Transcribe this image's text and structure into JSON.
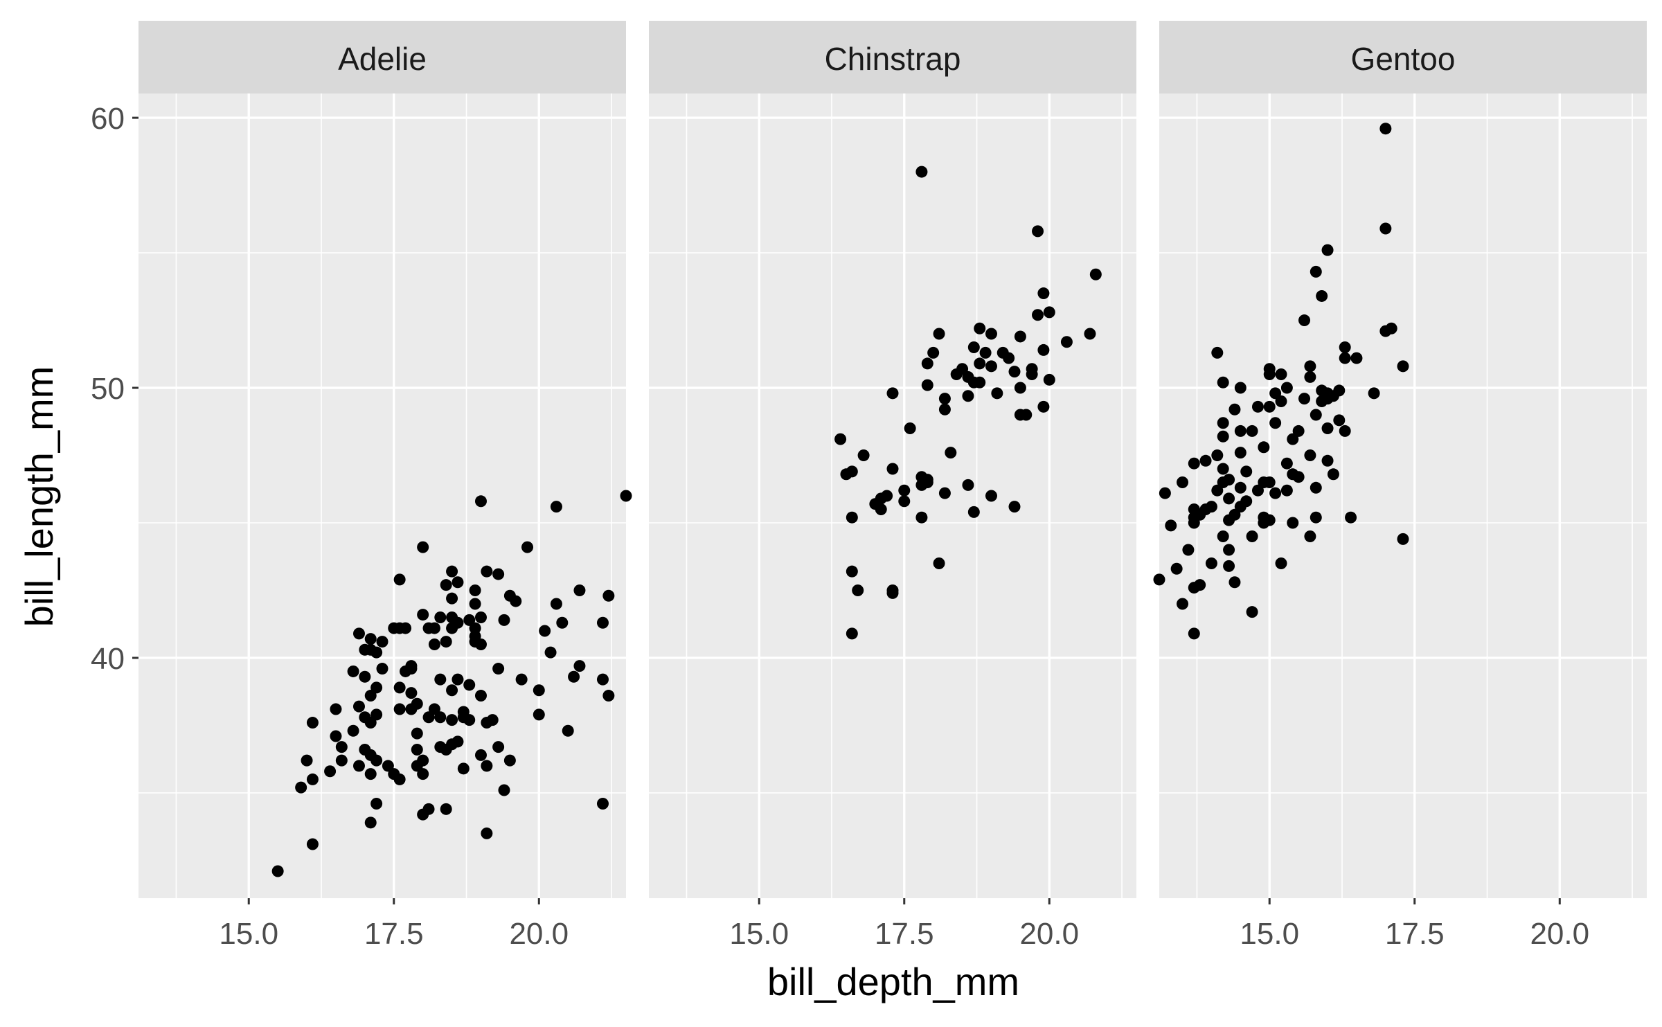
{
  "chart_data": {
    "type": "scatter",
    "xlabel": "bill_depth_mm",
    "ylabel": "bill_length_mm",
    "xlim": [
      13.1,
      21.5
    ],
    "ylim": [
      31.1,
      60.9
    ],
    "x_ticks": [
      15.0,
      17.5,
      20.0
    ],
    "x_tick_labels": [
      "15.0",
      "17.5",
      "20.0"
    ],
    "y_ticks": [
      40,
      50,
      60
    ],
    "y_tick_labels": [
      "40",
      "50",
      "60"
    ],
    "grid": true,
    "point_color": "#000000",
    "panel_background": "#ebebeb",
    "strip_background": "#d9d9d9",
    "facets": [
      {
        "label": "Adelie",
        "points": [
          [
            15.5,
            32.1
          ],
          [
            16.1,
            33.1
          ],
          [
            15.9,
            35.2
          ],
          [
            16.1,
            35.5
          ],
          [
            16.4,
            35.8
          ],
          [
            16.6,
            36.2
          ],
          [
            16.6,
            36.7
          ],
          [
            16.5,
            37.1
          ],
          [
            16.1,
            37.6
          ],
          [
            16.0,
            36.2
          ],
          [
            16.5,
            38.1
          ],
          [
            16.8,
            37.3
          ],
          [
            16.8,
            39.5
          ],
          [
            16.9,
            38.2
          ],
          [
            16.9,
            36.0
          ],
          [
            17.0,
            36.6
          ],
          [
            17.0,
            37.8
          ],
          [
            17.0,
            39.3
          ],
          [
            17.0,
            40.3
          ],
          [
            16.9,
            40.9
          ],
          [
            17.1,
            40.7
          ],
          [
            17.1,
            40.3
          ],
          [
            17.1,
            38.6
          ],
          [
            17.1,
            37.6
          ],
          [
            17.1,
            36.4
          ],
          [
            17.1,
            35.7
          ],
          [
            17.2,
            34.6
          ],
          [
            17.1,
            33.9
          ],
          [
            17.2,
            36.2
          ],
          [
            17.2,
            37.9
          ],
          [
            17.2,
            38.9
          ],
          [
            17.2,
            40.2
          ],
          [
            17.3,
            40.6
          ],
          [
            17.3,
            39.6
          ],
          [
            17.4,
            36.0
          ],
          [
            17.6,
            35.5
          ],
          [
            17.5,
            35.7
          ],
          [
            17.6,
            38.1
          ],
          [
            17.6,
            38.9
          ],
          [
            17.5,
            41.1
          ],
          [
            17.6,
            41.1
          ],
          [
            17.6,
            42.9
          ],
          [
            17.7,
            41.1
          ],
          [
            17.7,
            39.5
          ],
          [
            17.8,
            38.7
          ],
          [
            17.8,
            39.7
          ],
          [
            17.8,
            39.6
          ],
          [
            17.9,
            38.3
          ],
          [
            17.9,
            36.6
          ],
          [
            17.9,
            36.0
          ],
          [
            17.9,
            37.2
          ],
          [
            18.0,
            35.7
          ],
          [
            18.0,
            34.2
          ],
          [
            18.1,
            34.4
          ],
          [
            18.0,
            36.2
          ],
          [
            18.1,
            37.8
          ],
          [
            18.0,
            41.6
          ],
          [
            18.0,
            44.1
          ],
          [
            18.1,
            41.1
          ],
          [
            18.2,
            41.1
          ],
          [
            18.2,
            40.5
          ],
          [
            18.2,
            38.1
          ],
          [
            18.3,
            39.2
          ],
          [
            18.3,
            37.8
          ],
          [
            18.3,
            36.7
          ],
          [
            18.4,
            34.4
          ],
          [
            18.4,
            36.6
          ],
          [
            18.5,
            36.8
          ],
          [
            18.5,
            37.7
          ],
          [
            18.5,
            38.8
          ],
          [
            18.4,
            40.6
          ],
          [
            18.5,
            41.1
          ],
          [
            18.5,
            41.5
          ],
          [
            18.4,
            42.7
          ],
          [
            18.5,
            42.2
          ],
          [
            18.5,
            43.2
          ],
          [
            18.6,
            42.8
          ],
          [
            18.6,
            41.3
          ],
          [
            18.6,
            39.2
          ],
          [
            18.7,
            38.0
          ],
          [
            18.7,
            37.8
          ],
          [
            18.6,
            36.9
          ],
          [
            18.7,
            35.9
          ],
          [
            18.8,
            37.7
          ],
          [
            18.8,
            39.0
          ],
          [
            18.9,
            40.6
          ],
          [
            18.9,
            41.1
          ],
          [
            18.8,
            41.4
          ],
          [
            18.9,
            42.0
          ],
          [
            18.9,
            40.8
          ],
          [
            19.0,
            40.5
          ],
          [
            19.0,
            41.5
          ],
          [
            19.0,
            38.6
          ],
          [
            19.1,
            37.6
          ],
          [
            19.0,
            36.4
          ],
          [
            19.1,
            36.0
          ],
          [
            19.1,
            33.5
          ],
          [
            19.2,
            37.7
          ],
          [
            19.3,
            36.7
          ],
          [
            19.4,
            35.1
          ],
          [
            19.3,
            39.6
          ],
          [
            19.4,
            41.4
          ],
          [
            19.5,
            42.3
          ],
          [
            19.6,
            42.1
          ],
          [
            19.5,
            36.2
          ],
          [
            19.7,
            39.2
          ],
          [
            19.8,
            44.1
          ],
          [
            20.0,
            38.8
          ],
          [
            20.0,
            37.9
          ],
          [
            20.1,
            41.0
          ],
          [
            20.2,
            40.2
          ],
          [
            20.3,
            42.0
          ],
          [
            20.4,
            41.3
          ],
          [
            20.5,
            37.3
          ],
          [
            20.6,
            39.3
          ],
          [
            20.7,
            39.7
          ],
          [
            20.7,
            42.5
          ],
          [
            20.3,
            45.6
          ],
          [
            19.0,
            45.8
          ],
          [
            21.1,
            34.6
          ],
          [
            21.1,
            39.2
          ],
          [
            21.1,
            41.3
          ],
          [
            21.2,
            42.3
          ],
          [
            21.2,
            38.6
          ],
          [
            21.5,
            46.0
          ],
          [
            19.3,
            43.1
          ],
          [
            19.1,
            43.2
          ],
          [
            18.9,
            42.5
          ],
          [
            17.8,
            38.1
          ],
          [
            18.3,
            41.5
          ]
        ]
      },
      {
        "label": "Chinstrap",
        "points": [
          [
            16.4,
            48.1
          ],
          [
            16.5,
            46.8
          ],
          [
            16.6,
            46.9
          ],
          [
            16.6,
            45.2
          ],
          [
            16.6,
            43.2
          ],
          [
            16.7,
            42.5
          ],
          [
            16.6,
            40.9
          ],
          [
            16.8,
            47.5
          ],
          [
            17.0,
            45.7
          ],
          [
            17.1,
            45.5
          ],
          [
            17.1,
            45.9
          ],
          [
            17.2,
            46.0
          ],
          [
            17.3,
            47.0
          ],
          [
            17.3,
            49.8
          ],
          [
            17.3,
            42.5
          ],
          [
            17.3,
            42.4
          ],
          [
            17.5,
            45.8
          ],
          [
            17.5,
            46.2
          ],
          [
            17.6,
            48.5
          ],
          [
            17.8,
            45.2
          ],
          [
            17.8,
            46.4
          ],
          [
            17.9,
            46.5
          ],
          [
            17.8,
            46.7
          ],
          [
            17.9,
            46.6
          ],
          [
            17.9,
            50.1
          ],
          [
            17.9,
            50.9
          ],
          [
            17.8,
            58.0
          ],
          [
            18.0,
            51.3
          ],
          [
            18.1,
            52.0
          ],
          [
            18.1,
            43.5
          ],
          [
            18.2,
            46.1
          ],
          [
            18.2,
            49.2
          ],
          [
            18.2,
            49.6
          ],
          [
            18.3,
            47.6
          ],
          [
            18.4,
            50.5
          ],
          [
            18.5,
            50.7
          ],
          [
            18.6,
            46.4
          ],
          [
            18.6,
            49.7
          ],
          [
            18.7,
            45.4
          ],
          [
            18.7,
            51.5
          ],
          [
            18.7,
            50.2
          ],
          [
            18.8,
            50.2
          ],
          [
            18.8,
            50.9
          ],
          [
            18.8,
            52.2
          ],
          [
            18.9,
            51.3
          ],
          [
            19.0,
            46.0
          ],
          [
            19.0,
            52.0
          ],
          [
            19.0,
            50.8
          ],
          [
            19.1,
            49.8
          ],
          [
            19.2,
            51.3
          ],
          [
            19.4,
            50.6
          ],
          [
            19.4,
            45.6
          ],
          [
            19.5,
            51.9
          ],
          [
            19.5,
            50.0
          ],
          [
            19.5,
            49.0
          ],
          [
            19.6,
            49.0
          ],
          [
            19.7,
            50.5
          ],
          [
            19.7,
            50.7
          ],
          [
            19.8,
            52.7
          ],
          [
            19.8,
            55.8
          ],
          [
            19.9,
            53.5
          ],
          [
            19.9,
            49.3
          ],
          [
            19.9,
            51.4
          ],
          [
            20.0,
            50.3
          ],
          [
            20.0,
            52.8
          ],
          [
            20.3,
            51.7
          ],
          [
            20.7,
            52.0
          ],
          [
            20.8,
            54.2
          ],
          [
            19.3,
            51.1
          ],
          [
            18.6,
            50.4
          ]
        ]
      },
      {
        "label": "Gentoo",
        "points": [
          [
            13.1,
            42.9
          ],
          [
            13.2,
            46.1
          ],
          [
            13.3,
            44.9
          ],
          [
            13.4,
            43.3
          ],
          [
            13.5,
            42.0
          ],
          [
            13.5,
            46.5
          ],
          [
            13.6,
            44.0
          ],
          [
            13.7,
            45.2
          ],
          [
            13.7,
            45.5
          ],
          [
            13.7,
            45.0
          ],
          [
            13.7,
            47.2
          ],
          [
            13.7,
            42.6
          ],
          [
            13.7,
            40.9
          ],
          [
            13.8,
            42.7
          ],
          [
            13.8,
            45.3
          ],
          [
            13.9,
            45.5
          ],
          [
            13.9,
            47.3
          ],
          [
            14.0,
            45.6
          ],
          [
            14.0,
            43.5
          ],
          [
            14.1,
            47.5
          ],
          [
            14.1,
            46.2
          ],
          [
            14.2,
            44.5
          ],
          [
            14.2,
            46.5
          ],
          [
            14.2,
            47.0
          ],
          [
            14.2,
            48.7
          ],
          [
            14.2,
            48.2
          ],
          [
            14.1,
            51.3
          ],
          [
            14.2,
            50.2
          ],
          [
            14.3,
            46.6
          ],
          [
            14.3,
            45.9
          ],
          [
            14.3,
            43.4
          ],
          [
            14.4,
            42.8
          ],
          [
            14.3,
            45.1
          ],
          [
            14.4,
            45.3
          ],
          [
            14.5,
            46.3
          ],
          [
            14.5,
            47.6
          ],
          [
            14.5,
            48.4
          ],
          [
            14.4,
            49.2
          ],
          [
            14.5,
            45.6
          ],
          [
            14.6,
            46.9
          ],
          [
            14.6,
            45.8
          ],
          [
            14.7,
            44.5
          ],
          [
            14.7,
            41.7
          ],
          [
            14.7,
            48.4
          ],
          [
            14.8,
            49.3
          ],
          [
            14.8,
            46.2
          ],
          [
            14.9,
            45.0
          ],
          [
            14.9,
            46.5
          ],
          [
            14.9,
            47.8
          ],
          [
            15.0,
            49.3
          ],
          [
            15.0,
            46.5
          ],
          [
            15.0,
            45.1
          ],
          [
            15.0,
            50.5
          ],
          [
            15.0,
            50.7
          ],
          [
            15.1,
            46.1
          ],
          [
            15.1,
            48.7
          ],
          [
            15.2,
            43.5
          ],
          [
            15.2,
            49.5
          ],
          [
            15.2,
            50.5
          ],
          [
            15.3,
            50.0
          ],
          [
            15.3,
            47.2
          ],
          [
            15.4,
            46.8
          ],
          [
            15.4,
            45.0
          ],
          [
            15.5,
            46.7
          ],
          [
            15.5,
            48.4
          ],
          [
            15.6,
            49.6
          ],
          [
            15.6,
            52.5
          ],
          [
            15.7,
            47.5
          ],
          [
            15.7,
            44.5
          ],
          [
            15.7,
            50.8
          ],
          [
            15.7,
            50.4
          ],
          [
            15.8,
            49.0
          ],
          [
            15.8,
            45.2
          ],
          [
            15.8,
            46.3
          ],
          [
            15.8,
            54.3
          ],
          [
            15.9,
            53.4
          ],
          [
            15.9,
            49.9
          ],
          [
            15.9,
            49.5
          ],
          [
            16.0,
            49.8
          ],
          [
            16.0,
            49.6
          ],
          [
            16.0,
            48.5
          ],
          [
            16.0,
            47.3
          ],
          [
            16.0,
            55.1
          ],
          [
            16.1,
            46.8
          ],
          [
            16.1,
            49.7
          ],
          [
            16.2,
            48.8
          ],
          [
            16.2,
            49.9
          ],
          [
            16.3,
            51.1
          ],
          [
            16.3,
            48.4
          ],
          [
            16.3,
            51.5
          ],
          [
            16.4,
            45.2
          ],
          [
            16.5,
            51.1
          ],
          [
            16.8,
            49.8
          ],
          [
            17.0,
            59.6
          ],
          [
            17.0,
            55.9
          ],
          [
            17.0,
            52.1
          ],
          [
            17.1,
            52.2
          ],
          [
            17.3,
            44.4
          ],
          [
            17.3,
            50.8
          ],
          [
            15.4,
            48.1
          ],
          [
            14.9,
            45.2
          ],
          [
            15.3,
            46.2
          ],
          [
            14.5,
            50.0
          ],
          [
            15.1,
            49.8
          ],
          [
            14.3,
            44.0
          ]
        ]
      }
    ]
  }
}
